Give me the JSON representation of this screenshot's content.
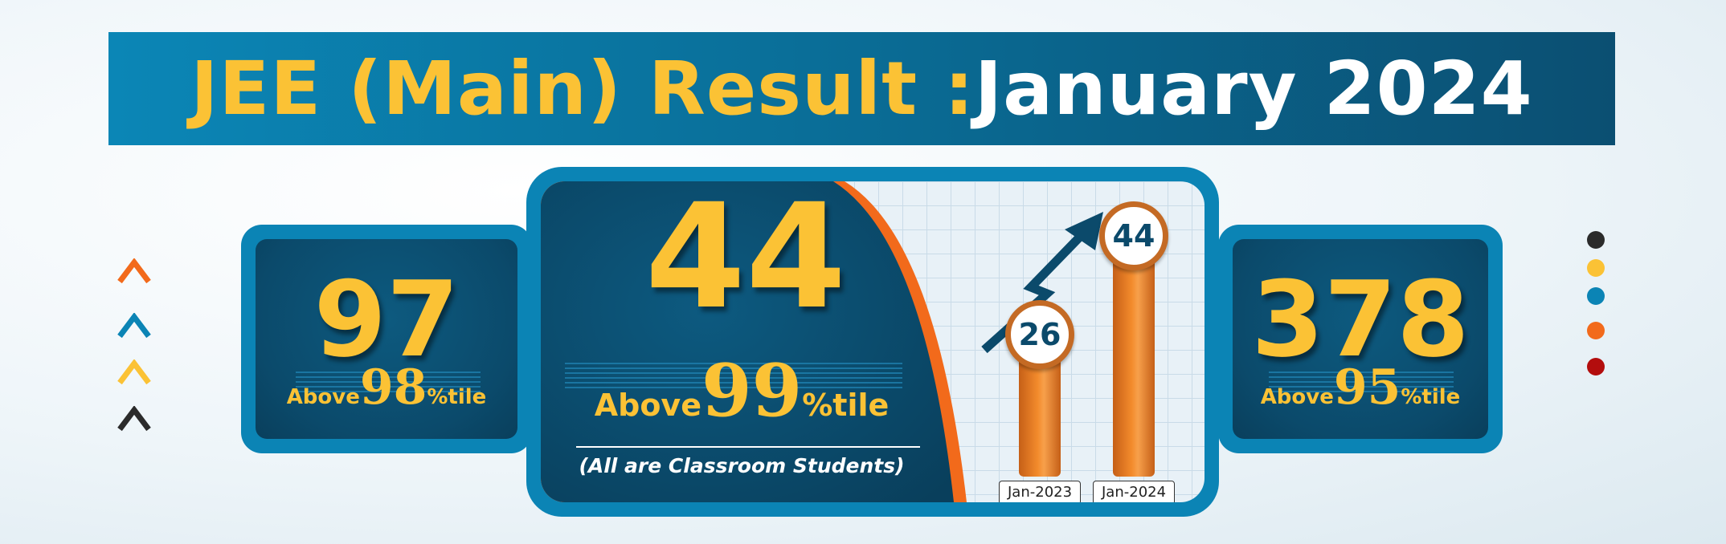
{
  "title": {
    "part1": "JEE (Main) Result : ",
    "part2": "January 2024"
  },
  "colors": {
    "accent_yellow": "#fbc235",
    "accent_blue": "#0b84b5",
    "dark_teal": "#0b4a6b",
    "accent_orange": "#f38b2c",
    "dots": [
      "#2b2b2b",
      "#fbc235",
      "#0b84b5",
      "#f26a1b",
      "#b30d0d"
    ],
    "chevrons": [
      "#f26a1b",
      "#0b84b5",
      "#fbc235",
      "#2b2b2b"
    ]
  },
  "left_card": {
    "count": "97",
    "above": "Above",
    "percentile": "98",
    "suffix": "%tile"
  },
  "center_card": {
    "count": "44",
    "above": "Above",
    "percentile": "99",
    "suffix": "%tile",
    "note": "(All are Classroom Students)"
  },
  "right_card": {
    "count": "378",
    "above": "Above",
    "percentile": "95",
    "suffix": "%tile"
  },
  "chart_data": {
    "type": "bar",
    "categories": [
      "Jan-2023",
      "Jan-2024"
    ],
    "values": [
      26,
      44
    ],
    "value_labels": [
      "26",
      "44"
    ],
    "title": "",
    "xlabel": "",
    "ylabel": ""
  }
}
